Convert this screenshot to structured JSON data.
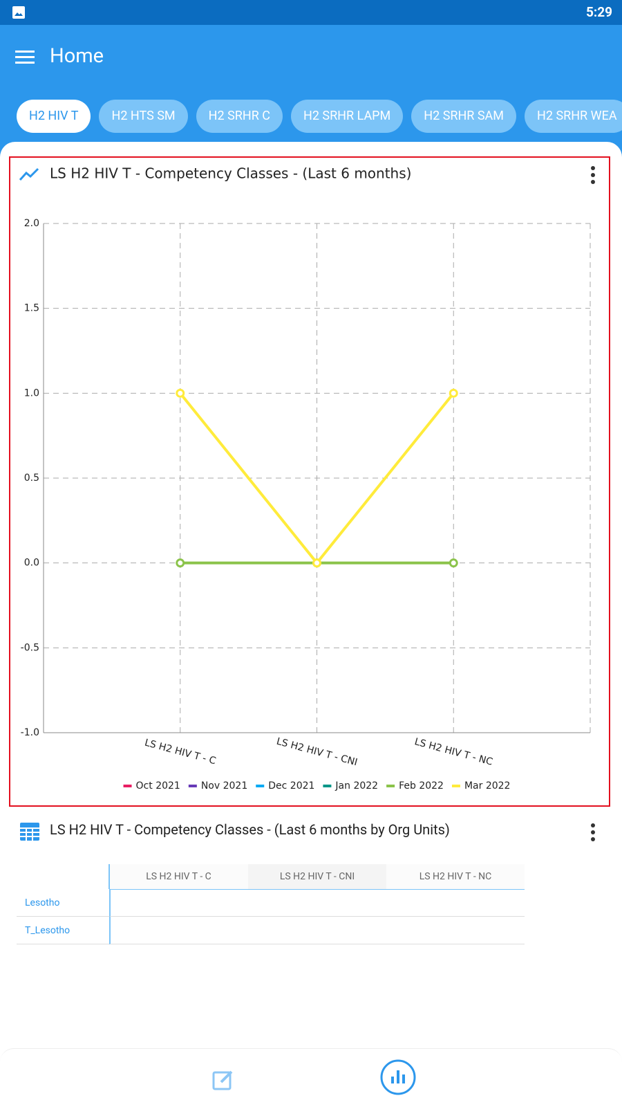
{
  "status_bar": {
    "time": "5:29"
  },
  "app_bar": {
    "title": "Home"
  },
  "tabs": [
    "H2 HIV T",
    "H2 HTS SM",
    "H2 SRHR C",
    "H2 SRHR LAPM",
    "H2 SRHR SAM",
    "H2 SRHR WEA"
  ],
  "chart_data": {
    "type": "line",
    "title": "LS H2 HIV T - Competency Classes - (Last 6 months)",
    "categories": [
      "LS H2 HIV T - C",
      "LS H2 HIV T - CNI",
      "LS H2 HIV T - NC"
    ],
    "series": [
      {
        "name": "Oct 2021",
        "color": "#e91e63",
        "values": [
          null,
          null,
          null
        ]
      },
      {
        "name": "Nov 2021",
        "color": "#673ab7",
        "values": [
          null,
          null,
          null
        ]
      },
      {
        "name": "Dec 2021",
        "color": "#03a9f4",
        "values": [
          null,
          null,
          null
        ]
      },
      {
        "name": "Jan 2022",
        "color": "#009688",
        "values": [
          null,
          null,
          null
        ]
      },
      {
        "name": "Feb 2022",
        "color": "#8bc34a",
        "values": [
          0,
          0,
          0
        ]
      },
      {
        "name": "Mar 2022",
        "color": "#ffeb3b",
        "values": [
          1,
          0,
          1
        ]
      }
    ],
    "ylim": [
      -1,
      2
    ],
    "yticks": [
      {
        "value": -1,
        "label": "-1.0"
      },
      -0.5,
      {
        "value": 0,
        "label": "0.0"
      },
      0.5,
      {
        "value": 1,
        "label": "1.0"
      },
      1.5,
      {
        "value": 2,
        "label": "2.0"
      }
    ],
    "grid": true,
    "legend": "bottom"
  },
  "table": {
    "title": "LS H2 HIV T - Competency Classes - (Last 6 months by Org Units)",
    "columns": [
      "LS H2 HIV T - C",
      "LS H2 HIV T - CNI",
      "LS H2 HIV T - NC"
    ],
    "rows": [
      "Lesotho",
      "T_Lesotho"
    ]
  }
}
